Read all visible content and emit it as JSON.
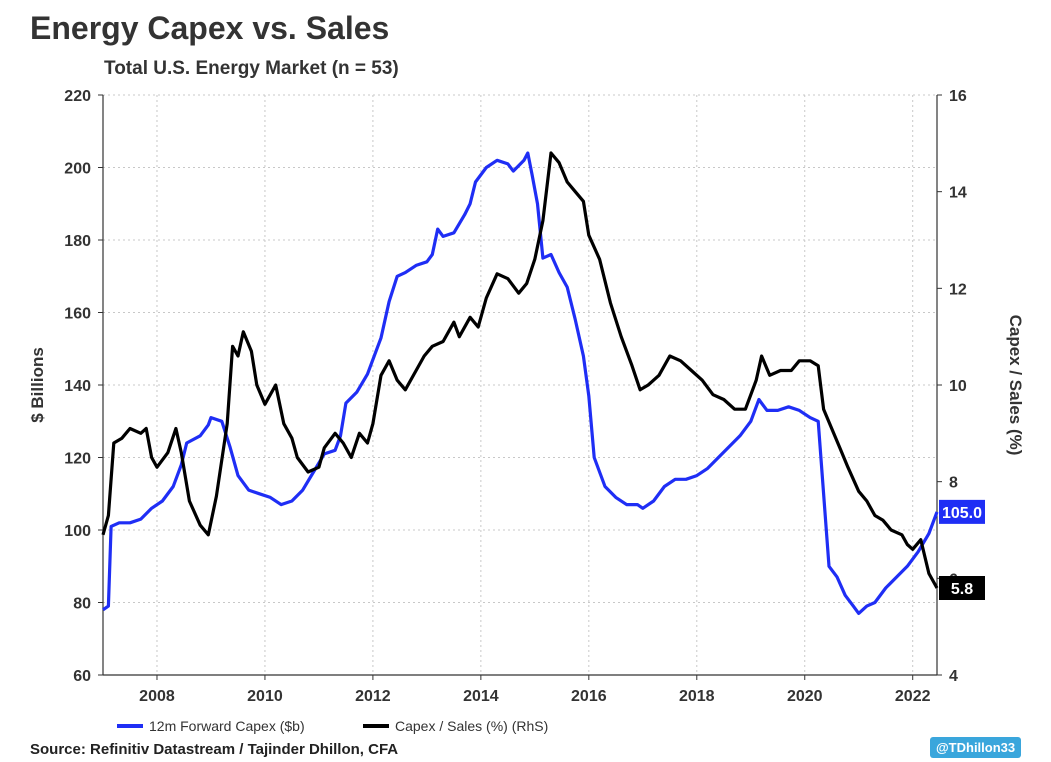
{
  "title": "Energy Capex vs. Sales",
  "subtitle": "Total U.S. Energy Market (n = 53)",
  "source": "Source: Refinitiv Datastream / Tajinder Dhillon, CFA",
  "handle": "@TDhillon33",
  "colors": {
    "capex": "#1f2ef5",
    "ratio": "#000000",
    "grid": "#c8c8c8"
  },
  "chart_data": {
    "type": "line",
    "x_axis": {
      "ticks": [
        "2008",
        "2010",
        "2012",
        "2014",
        "2016",
        "2018",
        "2020",
        "2022"
      ],
      "range": [
        2007.0,
        2022.45
      ]
    },
    "left_axis": {
      "label": "$ Billions",
      "range": [
        60,
        220
      ],
      "ticks": [
        60,
        80,
        100,
        120,
        140,
        160,
        180,
        200,
        220
      ]
    },
    "right_axis": {
      "label": "Capex / Sales (%)",
      "range": [
        4,
        16
      ],
      "ticks": [
        4,
        6,
        8,
        10,
        12,
        14,
        16
      ]
    },
    "grid": true,
    "legend_position": "bottom-left",
    "series": [
      {
        "name": "12m Forward Capex ($b)",
        "axis": "left",
        "last_value_label": "105.0",
        "points": [
          [
            2007.0,
            78
          ],
          [
            2007.1,
            79
          ],
          [
            2007.15,
            101
          ],
          [
            2007.3,
            102
          ],
          [
            2007.5,
            102
          ],
          [
            2007.7,
            103
          ],
          [
            2007.9,
            106
          ],
          [
            2008.1,
            108
          ],
          [
            2008.3,
            112
          ],
          [
            2008.45,
            118
          ],
          [
            2008.55,
            124
          ],
          [
            2008.8,
            126
          ],
          [
            2008.95,
            129
          ],
          [
            2009.0,
            131
          ],
          [
            2009.2,
            130
          ],
          [
            2009.35,
            123
          ],
          [
            2009.5,
            115
          ],
          [
            2009.7,
            111
          ],
          [
            2009.9,
            110
          ],
          [
            2010.1,
            109
          ],
          [
            2010.3,
            107
          ],
          [
            2010.5,
            108
          ],
          [
            2010.7,
            111
          ],
          [
            2010.9,
            116
          ],
          [
            2011.1,
            121
          ],
          [
            2011.3,
            122
          ],
          [
            2011.4,
            126
          ],
          [
            2011.5,
            135
          ],
          [
            2011.7,
            138
          ],
          [
            2011.9,
            143
          ],
          [
            2012.0,
            147
          ],
          [
            2012.15,
            153
          ],
          [
            2012.3,
            163
          ],
          [
            2012.45,
            170
          ],
          [
            2012.6,
            171
          ],
          [
            2012.8,
            173
          ],
          [
            2013.0,
            174
          ],
          [
            2013.1,
            176
          ],
          [
            2013.2,
            183
          ],
          [
            2013.3,
            181
          ],
          [
            2013.5,
            182
          ],
          [
            2013.7,
            187
          ],
          [
            2013.8,
            190
          ],
          [
            2013.9,
            196
          ],
          [
            2014.1,
            200
          ],
          [
            2014.3,
            202
          ],
          [
            2014.5,
            201
          ],
          [
            2014.6,
            199
          ],
          [
            2014.8,
            202
          ],
          [
            2014.87,
            204
          ],
          [
            2014.95,
            198
          ],
          [
            2015.05,
            190
          ],
          [
            2015.15,
            175
          ],
          [
            2015.3,
            176
          ],
          [
            2015.45,
            171
          ],
          [
            2015.6,
            167
          ],
          [
            2015.75,
            158
          ],
          [
            2015.9,
            148
          ],
          [
            2016.0,
            137
          ],
          [
            2016.1,
            120
          ],
          [
            2016.3,
            112
          ],
          [
            2016.5,
            109
          ],
          [
            2016.7,
            107
          ],
          [
            2016.9,
            107
          ],
          [
            2017.0,
            106
          ],
          [
            2017.2,
            108
          ],
          [
            2017.4,
            112
          ],
          [
            2017.6,
            114
          ],
          [
            2017.8,
            114
          ],
          [
            2018.0,
            115
          ],
          [
            2018.2,
            117
          ],
          [
            2018.4,
            120
          ],
          [
            2018.6,
            123
          ],
          [
            2018.8,
            126
          ],
          [
            2019.0,
            130
          ],
          [
            2019.15,
            136
          ],
          [
            2019.3,
            133
          ],
          [
            2019.5,
            133
          ],
          [
            2019.7,
            134
          ],
          [
            2019.9,
            133
          ],
          [
            2020.1,
            131
          ],
          [
            2020.25,
            130
          ],
          [
            2020.35,
            110
          ],
          [
            2020.45,
            90
          ],
          [
            2020.6,
            87
          ],
          [
            2020.75,
            82
          ],
          [
            2020.9,
            79
          ],
          [
            2021.0,
            77
          ],
          [
            2021.15,
            79
          ],
          [
            2021.3,
            80
          ],
          [
            2021.5,
            84
          ],
          [
            2021.7,
            87
          ],
          [
            2021.9,
            90
          ],
          [
            2022.1,
            94
          ],
          [
            2022.3,
            99
          ],
          [
            2022.45,
            105
          ]
        ]
      },
      {
        "name": "Capex / Sales (%) (RhS)",
        "axis": "right",
        "last_value_label": "5.8",
        "points": [
          [
            2007.0,
            6.9
          ],
          [
            2007.1,
            7.3
          ],
          [
            2007.2,
            8.8
          ],
          [
            2007.35,
            8.9
          ],
          [
            2007.5,
            9.1
          ],
          [
            2007.7,
            9.0
          ],
          [
            2007.8,
            9.1
          ],
          [
            2007.9,
            8.5
          ],
          [
            2008.0,
            8.3
          ],
          [
            2008.2,
            8.6
          ],
          [
            2008.35,
            9.1
          ],
          [
            2008.45,
            8.6
          ],
          [
            2008.6,
            7.6
          ],
          [
            2008.8,
            7.1
          ],
          [
            2008.95,
            6.9
          ],
          [
            2009.1,
            7.7
          ],
          [
            2009.3,
            9.2
          ],
          [
            2009.4,
            10.8
          ],
          [
            2009.5,
            10.6
          ],
          [
            2009.6,
            11.1
          ],
          [
            2009.75,
            10.7
          ],
          [
            2009.85,
            10.0
          ],
          [
            2010.0,
            9.6
          ],
          [
            2010.2,
            10.0
          ],
          [
            2010.35,
            9.2
          ],
          [
            2010.5,
            8.9
          ],
          [
            2010.6,
            8.5
          ],
          [
            2010.8,
            8.2
          ],
          [
            2011.0,
            8.3
          ],
          [
            2011.1,
            8.7
          ],
          [
            2011.3,
            9.0
          ],
          [
            2011.45,
            8.8
          ],
          [
            2011.6,
            8.5
          ],
          [
            2011.75,
            9.0
          ],
          [
            2011.9,
            8.8
          ],
          [
            2012.0,
            9.2
          ],
          [
            2012.15,
            10.2
          ],
          [
            2012.3,
            10.5
          ],
          [
            2012.45,
            10.1
          ],
          [
            2012.6,
            9.9
          ],
          [
            2012.8,
            10.3
          ],
          [
            2012.95,
            10.6
          ],
          [
            2013.1,
            10.8
          ],
          [
            2013.3,
            10.9
          ],
          [
            2013.5,
            11.3
          ],
          [
            2013.6,
            11.0
          ],
          [
            2013.8,
            11.4
          ],
          [
            2013.95,
            11.2
          ],
          [
            2014.1,
            11.8
          ],
          [
            2014.3,
            12.3
          ],
          [
            2014.5,
            12.2
          ],
          [
            2014.7,
            11.9
          ],
          [
            2014.85,
            12.1
          ],
          [
            2015.0,
            12.6
          ],
          [
            2015.15,
            13.4
          ],
          [
            2015.3,
            14.8
          ],
          [
            2015.45,
            14.6
          ],
          [
            2015.6,
            14.2
          ],
          [
            2015.75,
            14.0
          ],
          [
            2015.9,
            13.8
          ],
          [
            2016.0,
            13.1
          ],
          [
            2016.2,
            12.6
          ],
          [
            2016.4,
            11.7
          ],
          [
            2016.6,
            11.0
          ],
          [
            2016.8,
            10.4
          ],
          [
            2016.95,
            9.9
          ],
          [
            2017.1,
            10.0
          ],
          [
            2017.3,
            10.2
          ],
          [
            2017.5,
            10.6
          ],
          [
            2017.7,
            10.5
          ],
          [
            2017.9,
            10.3
          ],
          [
            2018.1,
            10.1
          ],
          [
            2018.3,
            9.8
          ],
          [
            2018.5,
            9.7
          ],
          [
            2018.7,
            9.5
          ],
          [
            2018.9,
            9.5
          ],
          [
            2019.1,
            10.1
          ],
          [
            2019.2,
            10.6
          ],
          [
            2019.35,
            10.2
          ],
          [
            2019.55,
            10.3
          ],
          [
            2019.75,
            10.3
          ],
          [
            2019.9,
            10.5
          ],
          [
            2020.1,
            10.5
          ],
          [
            2020.25,
            10.4
          ],
          [
            2020.35,
            9.5
          ],
          [
            2020.5,
            9.1
          ],
          [
            2020.65,
            8.7
          ],
          [
            2020.8,
            8.3
          ],
          [
            2021.0,
            7.8
          ],
          [
            2021.15,
            7.6
          ],
          [
            2021.3,
            7.3
          ],
          [
            2021.45,
            7.2
          ],
          [
            2021.6,
            7.0
          ],
          [
            2021.8,
            6.9
          ],
          [
            2021.9,
            6.7
          ],
          [
            2022.0,
            6.6
          ],
          [
            2022.15,
            6.8
          ],
          [
            2022.3,
            6.1
          ],
          [
            2022.45,
            5.8
          ]
        ]
      }
    ]
  }
}
